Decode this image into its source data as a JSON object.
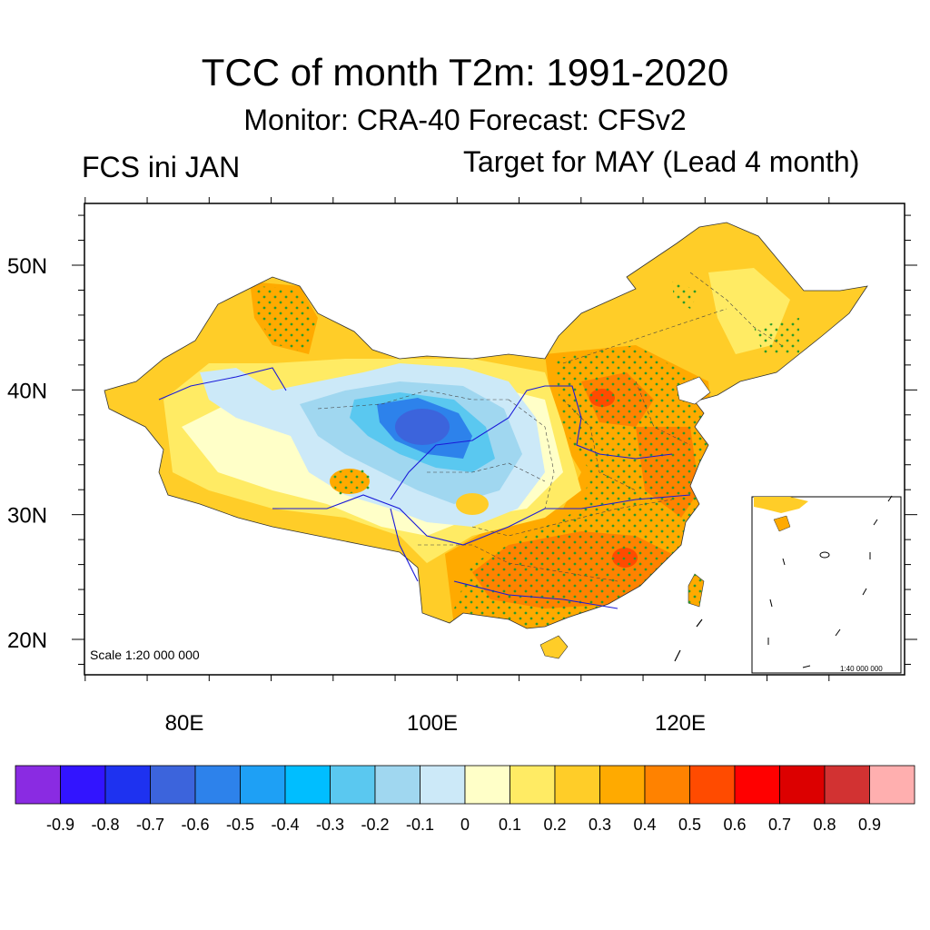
{
  "header": {
    "title": "TCC of month T2m: 1991-2020",
    "subtitle": "Monitor: CRA-40   Forecast: CFSv2",
    "left_label": "FCS ini JAN",
    "right_label": "Target for MAY (Lead 4 month)"
  },
  "map": {
    "lat_labels": [
      "50N",
      "40N",
      "30N",
      "20N"
    ],
    "lon_labels": [
      "80E",
      "100E",
      "120E"
    ],
    "scale_text": "Scale 1:20 000 000",
    "inset_scale_text": "1:40 000 000"
  },
  "colorbar": {
    "labels": [
      "-0.9",
      "-0.8",
      "-0.7",
      "-0.6",
      "-0.5",
      "-0.4",
      "-0.3",
      "-0.2",
      "-0.1",
      "0",
      "0.1",
      "0.2",
      "0.3",
      "0.4",
      "0.5",
      "0.6",
      "0.7",
      "0.8",
      "0.9"
    ],
    "colors": [
      "#8a2be2",
      "#3214ff",
      "#1e32f0",
      "#3c64dc",
      "#2d82eb",
      "#1ea0f5",
      "#00beff",
      "#5ac8f0",
      "#a0d7f0",
      "#cce9f8",
      "#ffffc8",
      "#ffeb64",
      "#ffcd28",
      "#ffaa00",
      "#ff8200",
      "#ff4b00",
      "#ff0000",
      "#dc0000",
      "#d23232",
      "#ffafaf"
    ]
  },
  "colors": {
    "neutral": "#ffffc8",
    "light_yellow": "#ffeb64",
    "yellow": "#ffcd28",
    "orange": "#ffaa00",
    "dark_orange": "#ff8200",
    "red_orange": "#ff4b00",
    "light_blue": "#cce9f8",
    "sky_blue": "#a0d7f0",
    "blue": "#5ac8f0",
    "mid_blue": "#2d82eb",
    "deep_blue": "#3c64dc",
    "stipple": "#2a9a2a",
    "river": "#1a1ad8"
  }
}
